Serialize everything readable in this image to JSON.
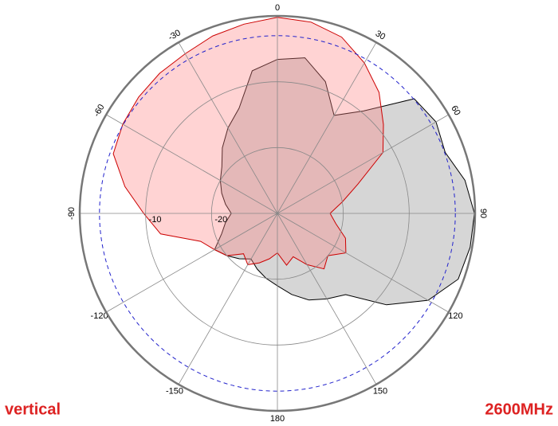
{
  "chart_data": {
    "type": "polar",
    "theta": [
      -180,
      -170,
      -160,
      -150,
      -140,
      -130,
      -120,
      -110,
      -100,
      -90,
      -80,
      -70,
      -60,
      -50,
      -40,
      -30,
      -20,
      -10,
      0,
      10,
      20,
      30,
      40,
      50,
      60,
      70,
      80,
      90,
      100,
      110,
      120,
      130,
      140,
      150,
      160,
      170
    ],
    "series": [
      {
        "color": "#000000",
        "fill": "#c8c8c8",
        "values": [
          -19,
          -20,
          -21,
          -22,
          -21,
          -20,
          -19,
          -21,
          -22,
          -23,
          -22,
          -21,
          -20,
          -19,
          -17,
          -15,
          -13,
          -8,
          -6.6,
          -6,
          -8.7,
          -12.8,
          -9.7,
          -2.9,
          -2.2,
          -2.9,
          -1.1,
          -0.1,
          -0.3,
          -0.8,
          -3.6,
          -8.4,
          -13.9,
          -15,
          -16,
          -17.5
        ]
      },
      {
        "color": "#cc0000",
        "fill": "#ff8080",
        "values": [
          -24,
          -23,
          -22,
          -21,
          -22,
          -20,
          -19,
          -17.6,
          -12,
          -9.7,
          -6.5,
          -3.5,
          -2.9,
          -2.5,
          -2.2,
          -2,
          -1.3,
          -0.8,
          -0.2,
          -0.5,
          -1.5,
          -3.6,
          -6,
          -9,
          -11.5,
          -17,
          -20,
          -22,
          -21,
          -19,
          -18,
          -20,
          -19,
          -21,
          -23,
          -22
        ]
      }
    ],
    "rlim": [
      -30,
      0
    ],
    "rticks": [
      -20,
      -10
    ],
    "reference_circle": -3,
    "thetaticks": [
      0,
      30,
      60,
      90,
      120,
      150,
      180,
      -150,
      -120,
      -90,
      -60,
      -30
    ],
    "left_label": "vertical",
    "right_label": "2600MHz"
  }
}
